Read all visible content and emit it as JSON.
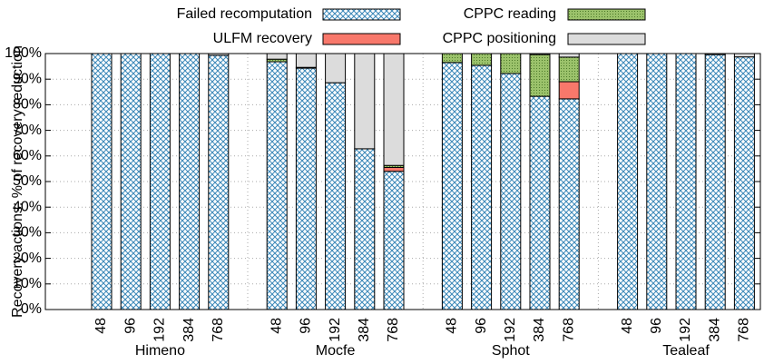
{
  "chart_data": {
    "type": "stacked_bar",
    "ylabel": "Recovery actions: % of recovery reduction",
    "categories": [
      "48",
      "96",
      "192",
      "384",
      "768",
      null,
      "48",
      "96",
      "192",
      "384",
      "768",
      null,
      "48",
      "96",
      "192",
      "384",
      "768",
      null,
      "48",
      "96",
      "192",
      "384",
      "768"
    ],
    "groups": [
      "Himeno",
      "Mocfe",
      "Sphot",
      "Tealeaf"
    ],
    "series": [
      {
        "name": "Failed recomputation",
        "color": "#3a87b8",
        "pattern": "crosshatch",
        "values": [
          100,
          100,
          100,
          100,
          99.3,
          null,
          96.8,
          94.3,
          88.6,
          62.8,
          54,
          null,
          96.5,
          95.4,
          92.2,
          83.3,
          82.3,
          null,
          100,
          100,
          100,
          99.6,
          98.7
        ]
      },
      {
        "name": "ULFM recovery",
        "color": "#f8786b",
        "pattern": "solid",
        "values": [
          0,
          0,
          0,
          0,
          0,
          null,
          0,
          0.3,
          0,
          0,
          1.5,
          null,
          0,
          0,
          0,
          0,
          6.7,
          null,
          0,
          0,
          0,
          0,
          0
        ]
      },
      {
        "name": "CPPC reading",
        "color": "#9bc26b",
        "pattern": "dots",
        "values": [
          0,
          0,
          0,
          0,
          0,
          null,
          1,
          0,
          0,
          0,
          0.8,
          null,
          3.5,
          4.6,
          7.8,
          16.3,
          9.6,
          null,
          0,
          0,
          0,
          0,
          0
        ]
      },
      {
        "name": "CPPC positioning",
        "color": "#dcdcdc",
        "pattern": "solid",
        "values": [
          0,
          0,
          0,
          0,
          0.7,
          null,
          2.2,
          5.4,
          11.4,
          37.2,
          43.7,
          null,
          0,
          0,
          0,
          0.4,
          1.4,
          null,
          0,
          0,
          0,
          0.4,
          1.3
        ]
      }
    ],
    "ylim": [
      0,
      100
    ],
    "yticks": [
      {
        "value": 0,
        "label": "0%"
      },
      {
        "value": 10,
        "label": "10%"
      },
      {
        "value": 20,
        "label": "20%"
      },
      {
        "value": 30,
        "label": "30%"
      },
      {
        "value": 40,
        "label": "40%"
      },
      {
        "value": 50,
        "label": "50%"
      },
      {
        "value": 60,
        "label": "60%"
      },
      {
        "value": 70,
        "label": "70%"
      },
      {
        "value": 80,
        "label": "80%"
      },
      {
        "value": 90,
        "label": "90%"
      },
      {
        "value": 100,
        "label": "100%"
      }
    ],
    "grid": true,
    "legend": "top"
  }
}
